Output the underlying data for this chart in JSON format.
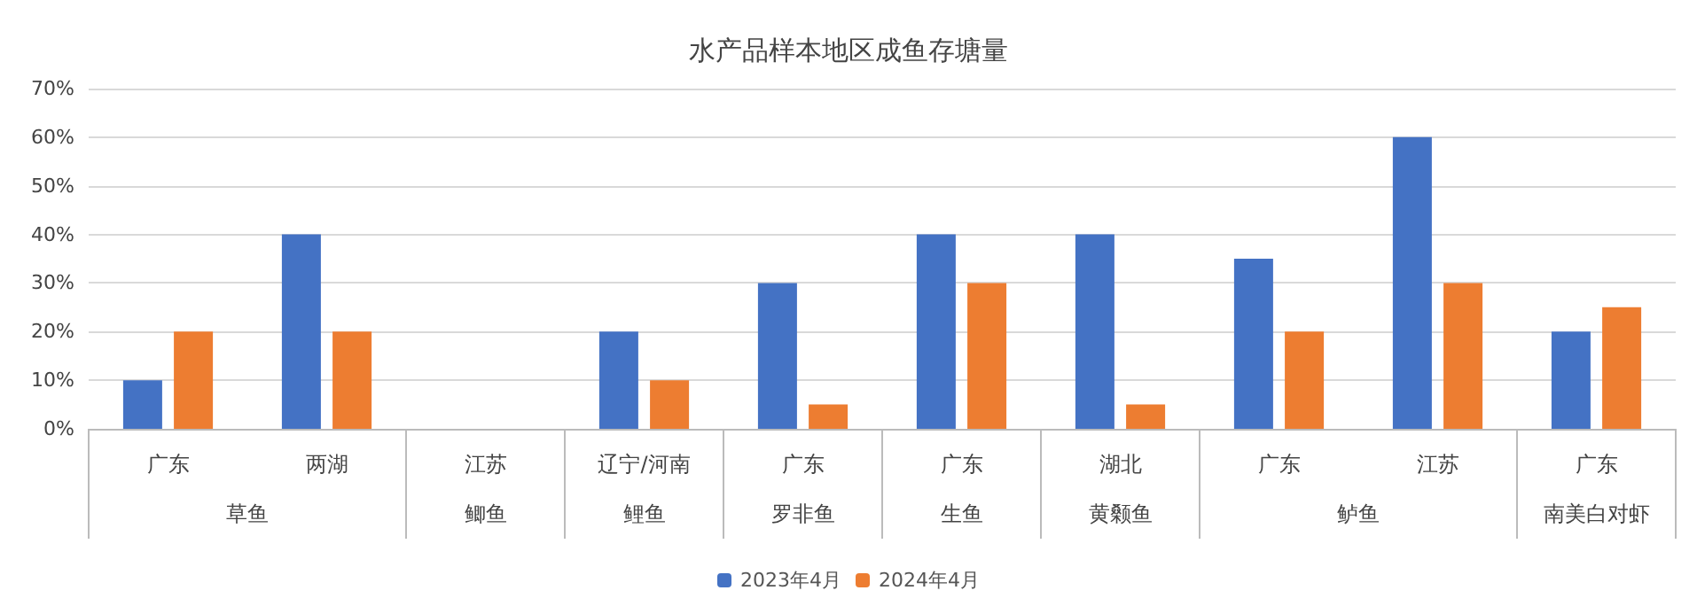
{
  "chart_data": {
    "type": "bar",
    "title": "水产品样本地区成鱼存塘量",
    "categories": [
      "广东",
      "两湖",
      "江苏",
      "辽宁/河南",
      "广东",
      "广东",
      "湖北",
      "广东",
      "江苏",
      "广东"
    ],
    "series": [
      {
        "name": "2023年4月",
        "color": "#4472c4",
        "values": [
          10,
          40,
          null,
          20,
          30,
          40,
          40,
          35,
          60,
          20
        ]
      },
      {
        "name": "2024年4月",
        "color": "#ed7d31",
        "values": [
          20,
          20,
          null,
          10,
          5,
          30,
          5,
          20,
          30,
          25
        ]
      }
    ],
    "annotations": [
      "草鱼",
      "鲫鱼",
      "鲤鱼",
      "罗非鱼",
      "生鱼",
      "黄颡鱼",
      "鲈鱼",
      "南美白对虾"
    ],
    "ylim": [
      0,
      70
    ],
    "yticks": [
      {
        "value": 0,
        "label": "0%"
      },
      {
        "value": 10,
        "label": "10%"
      },
      {
        "value": 20,
        "label": "20%"
      },
      {
        "value": 30,
        "label": "30%"
      },
      {
        "value": 40,
        "label": "40%"
      },
      {
        "value": 50,
        "label": "50%"
      },
      {
        "value": 60,
        "label": "60%"
      },
      {
        "value": 70,
        "label": "70%"
      }
    ],
    "grid": "y",
    "legend": "bottom"
  }
}
